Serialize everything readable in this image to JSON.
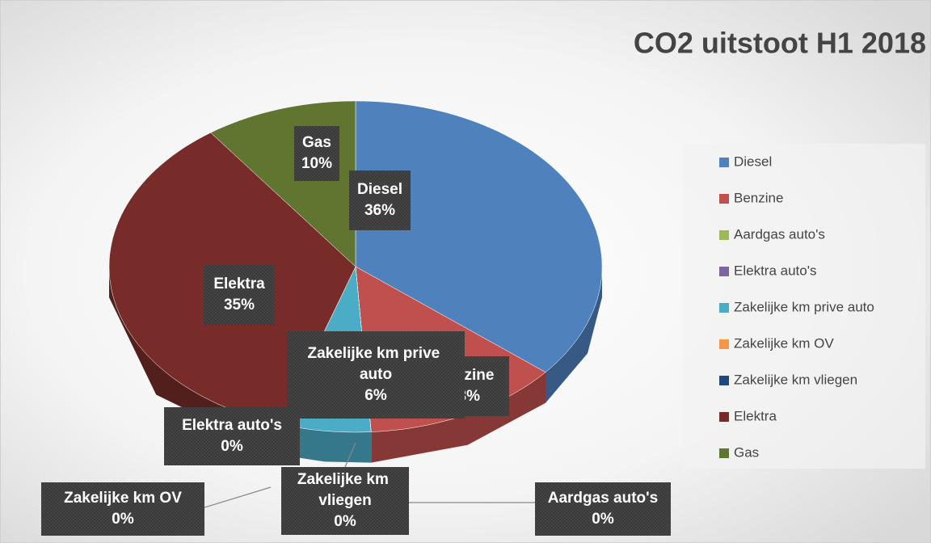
{
  "chart_data": {
    "type": "pie3d",
    "title": "CO2 uitstoot H1 2018",
    "categories": [
      "Diesel",
      "Benzine",
      "Aardgas auto's",
      "Elektra auto's",
      "Zakelijke km prive auto",
      "Zakelijke km OV",
      "Zakelijke km vliegen",
      "Elektra",
      "Gas"
    ],
    "values": [
      36,
      13,
      0,
      0,
      6,
      0,
      0,
      35,
      10
    ],
    "value_labels": [
      "36%",
      "13%",
      "0%",
      "0%",
      "6%",
      "0%",
      "0%",
      "35%",
      "10%"
    ],
    "colors": [
      "#4f81bd",
      "#c0504d",
      "#9bbb59",
      "#8064a2",
      "#4bacc6",
      "#f79646",
      "#1f497d",
      "#772c2a",
      "#5f7530"
    ],
    "legend": "right"
  }
}
